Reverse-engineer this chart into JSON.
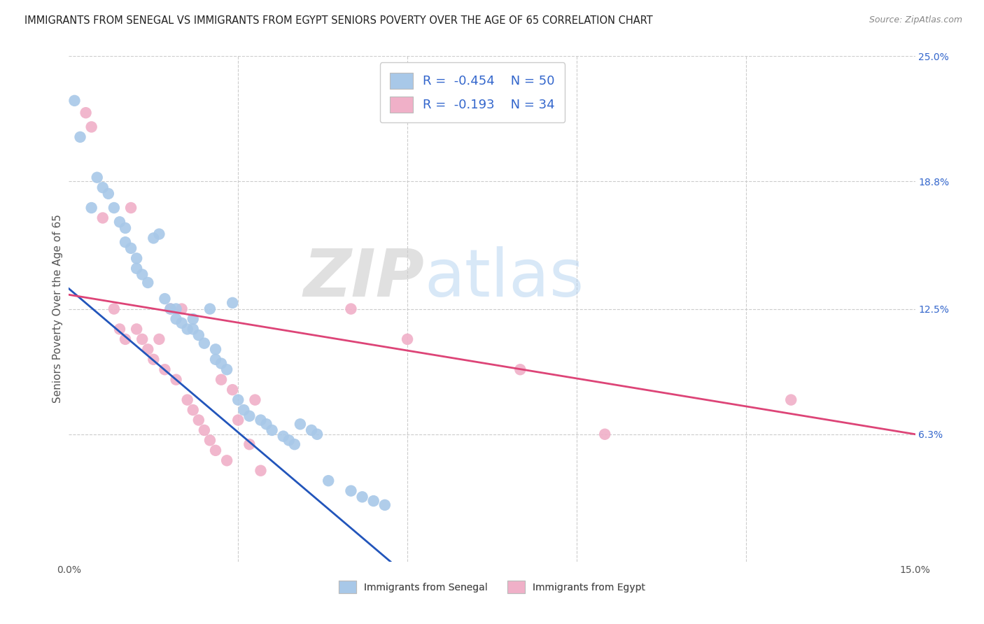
{
  "title": "IMMIGRANTS FROM SENEGAL VS IMMIGRANTS FROM EGYPT SENIORS POVERTY OVER THE AGE OF 65 CORRELATION CHART",
  "source": "Source: ZipAtlas.com",
  "ylabel": "Seniors Poverty Over the Age of 65",
  "xlim": [
    0.0,
    0.15
  ],
  "ylim": [
    0.0,
    0.25
  ],
  "yticks_right": [
    0.063,
    0.125,
    0.188,
    0.25
  ],
  "ytick_right_labels": [
    "6.3%",
    "12.5%",
    "18.8%",
    "25.0%"
  ],
  "legend_r1": "R =  -0.454",
  "legend_n1": "N = 50",
  "legend_r2": "R =  -0.193",
  "legend_n2": "N = 34",
  "senegal_color": "#a8c8e8",
  "egypt_color": "#f0b0c8",
  "senegal_line_color": "#2255bb",
  "egypt_line_color": "#dd4477",
  "background_color": "#ffffff",
  "grid_color": "#cccccc",
  "senegal_x": [
    0.001,
    0.002,
    0.004,
    0.005,
    0.006,
    0.007,
    0.008,
    0.009,
    0.01,
    0.01,
    0.011,
    0.012,
    0.012,
    0.013,
    0.014,
    0.015,
    0.016,
    0.017,
    0.018,
    0.019,
    0.019,
    0.02,
    0.021,
    0.022,
    0.022,
    0.023,
    0.024,
    0.025,
    0.026,
    0.026,
    0.027,
    0.028,
    0.029,
    0.03,
    0.031,
    0.032,
    0.034,
    0.035,
    0.036,
    0.038,
    0.039,
    0.04,
    0.041,
    0.043,
    0.044,
    0.046,
    0.05,
    0.052,
    0.054,
    0.056
  ],
  "senegal_y": [
    0.228,
    0.21,
    0.175,
    0.19,
    0.185,
    0.182,
    0.175,
    0.168,
    0.165,
    0.158,
    0.155,
    0.15,
    0.145,
    0.142,
    0.138,
    0.16,
    0.162,
    0.13,
    0.125,
    0.125,
    0.12,
    0.118,
    0.115,
    0.12,
    0.115,
    0.112,
    0.108,
    0.125,
    0.1,
    0.105,
    0.098,
    0.095,
    0.128,
    0.08,
    0.075,
    0.072,
    0.07,
    0.068,
    0.065,
    0.062,
    0.06,
    0.058,
    0.068,
    0.065,
    0.063,
    0.04,
    0.035,
    0.032,
    0.03,
    0.028
  ],
  "egypt_x": [
    0.003,
    0.004,
    0.006,
    0.008,
    0.009,
    0.01,
    0.011,
    0.012,
    0.013,
    0.014,
    0.015,
    0.016,
    0.017,
    0.018,
    0.019,
    0.02,
    0.021,
    0.022,
    0.023,
    0.024,
    0.025,
    0.026,
    0.027,
    0.028,
    0.029,
    0.03,
    0.032,
    0.033,
    0.034,
    0.05,
    0.06,
    0.08,
    0.095,
    0.128
  ],
  "egypt_y": [
    0.222,
    0.215,
    0.17,
    0.125,
    0.115,
    0.11,
    0.175,
    0.115,
    0.11,
    0.105,
    0.1,
    0.11,
    0.095,
    0.125,
    0.09,
    0.125,
    0.08,
    0.075,
    0.07,
    0.065,
    0.06,
    0.055,
    0.09,
    0.05,
    0.085,
    0.07,
    0.058,
    0.08,
    0.045,
    0.125,
    0.11,
    0.095,
    0.063,
    0.08
  ],
  "senegal_line_x0": 0.0,
  "senegal_line_y0": 0.135,
  "senegal_line_x1": 0.057,
  "senegal_line_y1": 0.0,
  "egypt_line_x0": 0.0,
  "egypt_line_y0": 0.132,
  "egypt_line_x1": 0.15,
  "egypt_line_y1": 0.063
}
